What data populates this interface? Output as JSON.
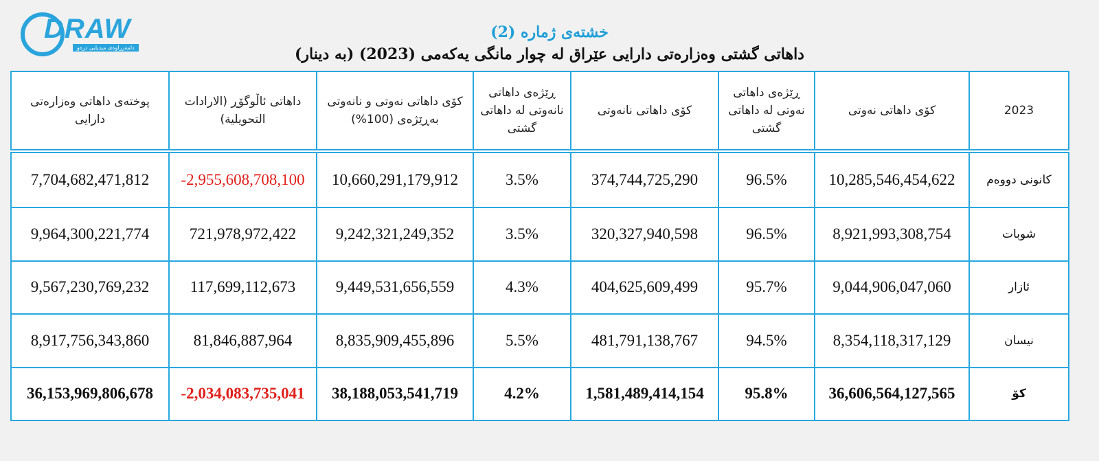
{
  "header": {
    "logo": "DRAW",
    "logo_tagline": "دامەزراوەی میدیایی درەو",
    "title": "خشتەی ژمارە (2)",
    "subtitle": "داهاتی گشتی وەزارەتی دارایی عێراق لە چوار مانگی یەکەمی (2023) (بە دینار)"
  },
  "table": {
    "columns": [
      "2023",
      "کۆی داهاتی نەوتی",
      "ڕێژەی داهاتی نەوتی لە داهاتی گشتی",
      "کۆی داهاتی نانەوتی",
      "ڕێژەی داهاتی نانەوتی لە داهاتی گشتی",
      "کۆی داهاتی نەوتی و نانەوتی بەڕێژەی (100%)",
      "داهاتی ئاڵوگۆڕ (الارادات التحویلیة)",
      "پوختەی داهاتی وەزارەتی دارایی"
    ],
    "rows": [
      [
        "کانونی دووەم",
        "10,285,546,454,622",
        "96.5%",
        "374,744,725,290",
        "3.5%",
        "10,660,291,179,912",
        "-2,955,608,708,100",
        "7,704,682,471,812"
      ],
      [
        "شوبات",
        "8,921,993,308,754",
        "96.5%",
        "320,327,940,598",
        "3.5%",
        "9,242,321,249,352",
        "721,978,972,422",
        "9,964,300,221,774"
      ],
      [
        "ئازار",
        "9,044,906,047,060",
        "95.7%",
        "404,625,609,499",
        "4.3%",
        "9,449,531,656,559",
        "117,699,112,673",
        "9,567,230,769,232"
      ],
      [
        "نیسان",
        "8,354,118,317,129",
        "94.5%",
        "481,791,138,767",
        "5.5%",
        "8,835,909,455,896",
        "81,846,887,964",
        "8,917,756,343,860"
      ],
      [
        "کۆ",
        "36,606,564,127,565",
        "95.8%",
        "1,581,489,414,154",
        "4.2%",
        "38,188,053,541,719",
        "-2,034,083,735,041",
        "36,153,969,806,678"
      ]
    ]
  }
}
